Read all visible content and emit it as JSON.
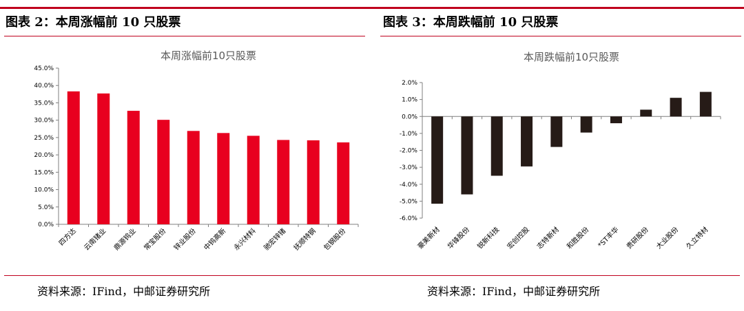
{
  "left_panel": {
    "heading": "图表 2：本周涨幅前 10 只股票",
    "source": "资料来源：IFind，中邮证券研究所"
  },
  "right_panel": {
    "heading": "图表 3：本周跌幅前 10 只股票",
    "source": "资料来源：IFind，中邮证券研究所"
  },
  "colors": {
    "accent_rule": "#c0001d",
    "gain_bar": "#e8001f",
    "loss_bar": "#261b17"
  },
  "chart_data": [
    {
      "type": "bar",
      "title": "本周涨幅前10只股票",
      "categories": [
        "四方达",
        "云南锗业",
        "鼎源钨业",
        "常宝股份",
        "锌业股份",
        "中钨高新",
        "永兴材料",
        "驰宏锌锗",
        "抚顺特钢",
        "包钢股份"
      ],
      "values": [
        38.3,
        37.7,
        32.7,
        30.1,
        26.9,
        26.3,
        25.5,
        24.3,
        24.2,
        23.6
      ],
      "ylim": [
        0,
        45
      ],
      "yticks": [
        0,
        5,
        10,
        15,
        20,
        25,
        30,
        35,
        40,
        45
      ],
      "ytick_labels": [
        "0.0%",
        "5.0%",
        "10.0%",
        "15.0%",
        "20.0%",
        "25.0%",
        "30.0%",
        "35.0%",
        "40.0%",
        "45.0%"
      ],
      "grid": false,
      "xlabel": "",
      "ylabel": ""
    },
    {
      "type": "bar",
      "title": "本周跌幅前10只股票",
      "categories": [
        "豪美新材",
        "华锋股份",
        "锐新科技",
        "宏创控股",
        "志特新材",
        "和胜股份",
        "*ST丰华",
        "贵研股份",
        "大业股份",
        "久立特材"
      ],
      "values": [
        -5.15,
        -4.6,
        -3.5,
        -2.95,
        -1.8,
        -0.95,
        -0.4,
        0.4,
        1.1,
        1.45
      ],
      "ylim": [
        -6,
        2
      ],
      "yticks": [
        -6,
        -5,
        -4,
        -3,
        -2,
        -1,
        0,
        1,
        2
      ],
      "ytick_labels": [
        "-6.0%",
        "-5.0%",
        "-4.0%",
        "-3.0%",
        "-2.0%",
        "-1.0%",
        "0.0%",
        "1.0%",
        "2.0%"
      ],
      "grid": false,
      "xlabel": "",
      "ylabel": ""
    }
  ]
}
